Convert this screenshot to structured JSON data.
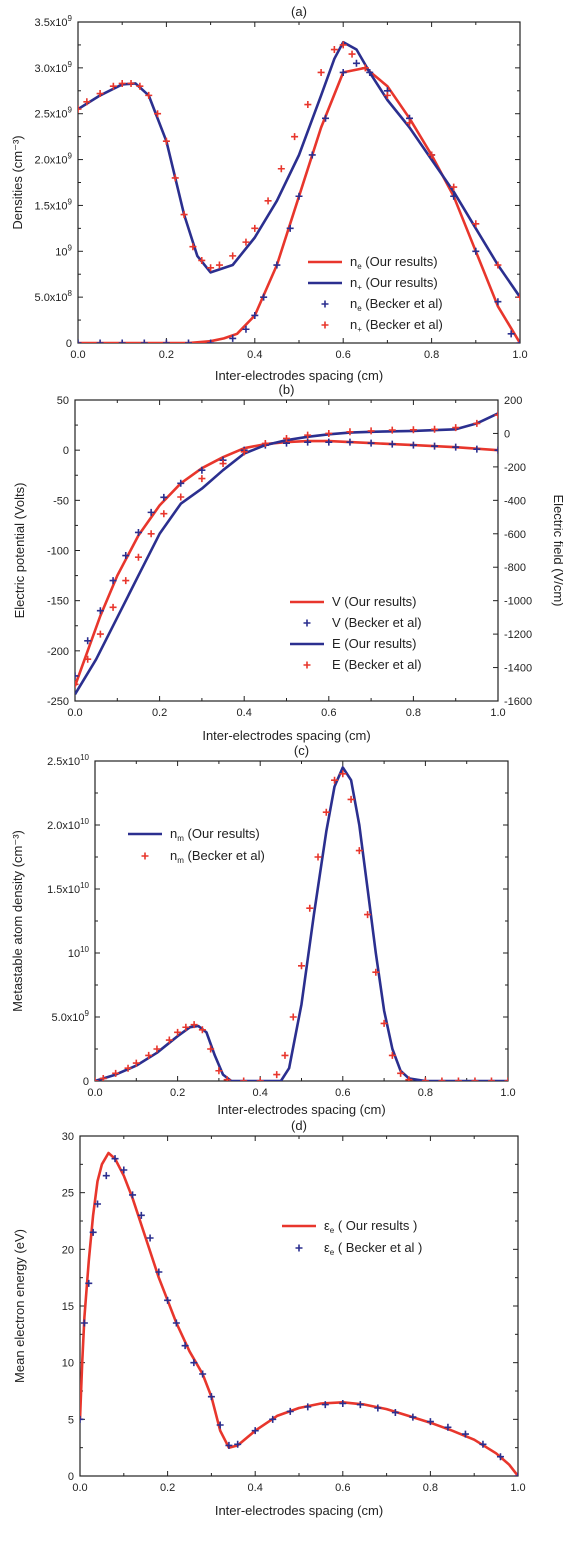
{
  "colors": {
    "red": "#e8362c",
    "blue": "#2b2f8f",
    "axis": "#222222"
  },
  "chart_data": [
    {
      "panel": "(a)",
      "type": "line",
      "title": "(a)",
      "xlabel": "Inter-electrodes spacing (cm)",
      "ylabel": "Densities (cm⁻³)",
      "xlim": [
        0,
        1
      ],
      "ylim": [
        0,
        3500000000.0
      ],
      "xticks": [
        "0.0",
        "0.2",
        "0.4",
        "0.6",
        "0.8",
        "1.0"
      ],
      "yticks": [
        {
          "v": 0,
          "base": "0",
          "exp": ""
        },
        {
          "v": 500000000.0,
          "base": "5.0x10",
          "exp": "8"
        },
        {
          "v": 1000000000.0,
          "base": "10",
          "exp": "9"
        },
        {
          "v": 1500000000.0,
          "base": "1.5x10",
          "exp": "9"
        },
        {
          "v": 2000000000.0,
          "base": "2.0x10",
          "exp": "9"
        },
        {
          "v": 2500000000.0,
          "base": "2.5x10",
          "exp": "9"
        },
        {
          "v": 3000000000.0,
          "base": "3.0x10",
          "exp": "9"
        },
        {
          "v": 3500000000.0,
          "base": "3.5x10",
          "exp": "9"
        }
      ],
      "legend_position": "center-right",
      "series": [
        {
          "name": "n_e (Our results)",
          "sym": "n",
          "subscript": "e",
          "rest": " (Our results)",
          "style": "line",
          "color": "red",
          "x": [
            0,
            0.05,
            0.1,
            0.15,
            0.2,
            0.25,
            0.3,
            0.33,
            0.36,
            0.4,
            0.45,
            0.5,
            0.55,
            0.6,
            0.65,
            0.7,
            0.75,
            0.8,
            0.85,
            0.9,
            0.95,
            1.0
          ],
          "y": [
            0.0,
            0.0,
            0.0,
            0.0,
            0.0,
            0.0,
            20000000.0,
            50000000.0,
            100000000.0,
            300000000.0,
            850000000.0,
            1600000000.0,
            2350000000.0,
            2950000000.0,
            3000000000.0,
            2800000000.0,
            2450000000.0,
            2050000000.0,
            1600000000.0,
            1000000000.0,
            400000000.0,
            0.0
          ]
        },
        {
          "name": "n_+ (Our results)",
          "sym": "n",
          "subscript": "+",
          "rest": " (Our results)",
          "style": "line",
          "color": "blue",
          "x": [
            0,
            0.05,
            0.1,
            0.13,
            0.16,
            0.2,
            0.24,
            0.27,
            0.3,
            0.35,
            0.4,
            0.45,
            0.5,
            0.55,
            0.58,
            0.6,
            0.63,
            0.66,
            0.7,
            0.75,
            0.8,
            0.85,
            0.9,
            0.95,
            1.0
          ],
          "y": [
            2550000000.0,
            2700000000.0,
            2820000000.0,
            2830000000.0,
            2700000000.0,
            2200000000.0,
            1400000000.0,
            950000000.0,
            770000000.0,
            850000000.0,
            1150000000.0,
            1550000000.0,
            2050000000.0,
            2700000000.0,
            3100000000.0,
            3280000000.0,
            3200000000.0,
            2950000000.0,
            2650000000.0,
            2350000000.0,
            2000000000.0,
            1650000000.0,
            1250000000.0,
            850000000.0,
            500000000.0
          ]
        },
        {
          "name": "n_e (Becker et al)",
          "sym": "n",
          "subscript": "e",
          "rest": " (Becker et al)",
          "style": "plus",
          "color": "blue",
          "x": [
            0.0,
            0.05,
            0.1,
            0.15,
            0.2,
            0.25,
            0.3,
            0.35,
            0.38,
            0.4,
            0.42,
            0.45,
            0.48,
            0.5,
            0.53,
            0.56,
            0.6,
            0.63,
            0.66,
            0.7,
            0.75,
            0.8,
            0.85,
            0.9,
            0.95,
            0.98,
            1.0
          ],
          "y": [
            0.0,
            0.0,
            0.0,
            0.0,
            0.0,
            0.0,
            0.0,
            50000000.0,
            150000000.0,
            300000000.0,
            500000000.0,
            850000000.0,
            1250000000.0,
            1600000000.0,
            2050000000.0,
            2450000000.0,
            2950000000.0,
            3050000000.0,
            2950000000.0,
            2750000000.0,
            2450000000.0,
            2050000000.0,
            1600000000.0,
            1000000000.0,
            450000000.0,
            100000000.0,
            0.0
          ]
        },
        {
          "name": "n_+ (Becker et al)",
          "sym": "n",
          "subscript": "+",
          "rest": " (Becker et al)",
          "style": "plus",
          "color": "red",
          "x": [
            0.0,
            0.02,
            0.05,
            0.08,
            0.1,
            0.12,
            0.14,
            0.16,
            0.18,
            0.2,
            0.22,
            0.24,
            0.26,
            0.28,
            0.3,
            0.32,
            0.35,
            0.38,
            0.4,
            0.43,
            0.46,
            0.49,
            0.52,
            0.55,
            0.58,
            0.6,
            0.62,
            0.65,
            0.7,
            0.75,
            0.8,
            0.85,
            0.9,
            0.95,
            1.0
          ],
          "y": [
            2550000000.0,
            2630000000.0,
            2720000000.0,
            2800000000.0,
            2830000000.0,
            2830000000.0,
            2800000000.0,
            2700000000.0,
            2500000000.0,
            2200000000.0,
            1800000000.0,
            1400000000.0,
            1050000000.0,
            900000000.0,
            820000000.0,
            850000000.0,
            950000000.0,
            1100000000.0,
            1250000000.0,
            1550000000.0,
            1900000000.0,
            2250000000.0,
            2600000000.0,
            2950000000.0,
            3200000000.0,
            3250000000.0,
            3150000000.0,
            3000000000.0,
            2700000000.0,
            2400000000.0,
            2050000000.0,
            1700000000.0,
            1300000000.0,
            850000000.0,
            500000000.0
          ]
        }
      ]
    },
    {
      "panel": "(b)",
      "type": "line",
      "title": "(b)",
      "xlabel": "Inter-electrodes spacing (cm)",
      "ylabel": "Electric potential (Volts)",
      "y2label": "Electric field (V/cm)",
      "xlim": [
        0,
        1
      ],
      "ylim": [
        -250,
        50
      ],
      "y2lim": [
        -1600,
        200
      ],
      "xticks": [
        "0.0",
        "0.2",
        "0.4",
        "0.6",
        "0.8",
        "1.0"
      ],
      "yticks": [
        "-250",
        "-200",
        "-150",
        "-100",
        "-50",
        "0",
        "50"
      ],
      "y2ticks": [
        "-1600",
        "-1400",
        "-1200",
        "-1000",
        "-800",
        "-600",
        "-400",
        "-200",
        "0",
        "200"
      ],
      "legend_position": "center-right",
      "series": [
        {
          "name": "V (Our results)",
          "sym": "V",
          "subscript": "",
          "rest": " (Our results)",
          "style": "line",
          "color": "red",
          "axis": "left",
          "x": [
            0,
            0.03,
            0.06,
            0.1,
            0.15,
            0.2,
            0.25,
            0.3,
            0.35,
            0.4,
            0.45,
            0.5,
            0.55,
            0.6,
            0.65,
            0.7,
            0.8,
            0.9,
            1.0
          ],
          "y": [
            -235,
            -200,
            -165,
            -125,
            -85,
            -55,
            -33,
            -18,
            -7,
            2,
            6,
            8,
            9,
            9,
            8,
            7,
            5,
            3,
            0
          ]
        },
        {
          "name": "V (Becker et al)",
          "sym": "V",
          "subscript": "",
          "rest": " (Becker et al)",
          "style": "plus",
          "color": "blue",
          "axis": "left",
          "x": [
            0,
            0.03,
            0.06,
            0.09,
            0.12,
            0.15,
            0.18,
            0.21,
            0.25,
            0.3,
            0.35,
            0.4,
            0.45,
            0.5,
            0.55,
            0.6,
            0.65,
            0.7,
            0.75,
            0.8,
            0.85,
            0.9,
            0.95,
            1.0
          ],
          "y": [
            -225,
            -190,
            -160,
            -130,
            -105,
            -82,
            -62,
            -47,
            -33,
            -20,
            -10,
            0,
            5,
            7,
            8,
            8,
            8,
            7,
            6,
            5,
            4,
            3,
            1,
            0
          ]
        },
        {
          "name": "E (Our results)",
          "sym": "E",
          "subscript": "",
          "rest": " (Our results)",
          "style": "line",
          "color": "blue",
          "axis": "right",
          "x": [
            0,
            0.05,
            0.1,
            0.15,
            0.2,
            0.25,
            0.3,
            0.35,
            0.4,
            0.45,
            0.5,
            0.55,
            0.6,
            0.65,
            0.7,
            0.8,
            0.9,
            0.95,
            1.0
          ],
          "y": [
            -1560,
            -1350,
            -1100,
            -850,
            -600,
            -420,
            -330,
            -220,
            -120,
            -70,
            -40,
            -20,
            -5,
            5,
            10,
            15,
            25,
            60,
            120
          ]
        },
        {
          "name": "E (Becker et al)",
          "sym": "E",
          "subscript": "",
          "rest": " (Becker et al)",
          "style": "plus",
          "color": "red",
          "axis": "right",
          "x": [
            0,
            0.03,
            0.06,
            0.09,
            0.12,
            0.15,
            0.18,
            0.21,
            0.25,
            0.3,
            0.35,
            0.4,
            0.45,
            0.5,
            0.55,
            0.6,
            0.65,
            0.7,
            0.75,
            0.8,
            0.85,
            0.9,
            0.95,
            1.0
          ],
          "y": [
            -1500,
            -1350,
            -1200,
            -1040,
            -880,
            -740,
            -600,
            -480,
            -380,
            -270,
            -180,
            -110,
            -60,
            -30,
            -10,
            0,
            10,
            15,
            20,
            22,
            25,
            35,
            60,
            110
          ]
        }
      ]
    },
    {
      "panel": "(c)",
      "type": "line",
      "title": "(c)",
      "xlabel": "Inter-electrodes spacing (cm)",
      "ylabel": "Metastable atom density (cm⁻³)",
      "xlim": [
        0,
        1
      ],
      "ylim": [
        0,
        25000000000.0
      ],
      "xticks": [
        "0.0",
        "0.2",
        "0.4",
        "0.6",
        "0.8",
        "1.0"
      ],
      "yticks": [
        {
          "v": 0,
          "base": "0",
          "exp": ""
        },
        {
          "v": 5000000000.0,
          "base": "5.0x10",
          "exp": "9"
        },
        {
          "v": 10000000000.0,
          "base": "10",
          "exp": "10"
        },
        {
          "v": 15000000000.0,
          "base": "1.5x10",
          "exp": "10"
        },
        {
          "v": 20000000000.0,
          "base": "2.0x10",
          "exp": "10"
        },
        {
          "v": 25000000000.0,
          "base": "2.5x10",
          "exp": "10"
        }
      ],
      "legend_position": "top-left",
      "series": [
        {
          "name": "n_m (Our results)",
          "sym": "n",
          "subscript": "m",
          "rest": " (Our results)",
          "style": "line",
          "color": "blue",
          "x": [
            0,
            0.05,
            0.1,
            0.15,
            0.2,
            0.23,
            0.25,
            0.27,
            0.29,
            0.31,
            0.33,
            0.35,
            0.45,
            0.47,
            0.5,
            0.53,
            0.56,
            0.58,
            0.6,
            0.62,
            0.64,
            0.66,
            0.68,
            0.7,
            0.72,
            0.74,
            0.76,
            0.8,
            1.0
          ],
          "y": [
            0,
            500000000.0,
            1200000000.0,
            2200000000.0,
            3500000000.0,
            4200000000.0,
            4300000000.0,
            3800000000.0,
            2000000000.0,
            500000000.0,
            0,
            0,
            0,
            1000000000.0,
            6000000000.0,
            13000000000.0,
            19500000000.0,
            23000000000.0,
            24500000000.0,
            23500000000.0,
            20000000000.0,
            15000000000.0,
            10000000000.0,
            5500000000.0,
            2500000000.0,
            800000000.0,
            200000000.0,
            0,
            0
          ]
        },
        {
          "name": "n_m (Becker et al)",
          "sym": "n",
          "subscript": "m",
          "rest": " (Becker et al)",
          "style": "plus",
          "color": "red",
          "x": [
            0.0,
            0.02,
            0.05,
            0.08,
            0.1,
            0.13,
            0.15,
            0.18,
            0.2,
            0.22,
            0.24,
            0.26,
            0.28,
            0.3,
            0.32,
            0.36,
            0.4,
            0.44,
            0.46,
            0.48,
            0.5,
            0.52,
            0.54,
            0.56,
            0.58,
            0.6,
            0.62,
            0.64,
            0.66,
            0.68,
            0.7,
            0.72,
            0.74,
            0.76,
            0.8,
            0.84,
            0.88,
            0.92,
            0.96,
            1.0
          ],
          "y": [
            0,
            200000000.0,
            600000000.0,
            1000000000.0,
            1400000000.0,
            2000000000.0,
            2500000000.0,
            3200000000.0,
            3800000000.0,
            4200000000.0,
            4400000000.0,
            4000000000.0,
            2500000000.0,
            800000000.0,
            100000000.0,
            0,
            0,
            500000000.0,
            2000000000.0,
            5000000000.0,
            9000000000.0,
            13500000000.0,
            17500000000.0,
            21000000000.0,
            23500000000.0,
            24000000000.0,
            22000000000.0,
            18000000000.0,
            13000000000.0,
            8500000000.0,
            4500000000.0,
            2000000000.0,
            600000000.0,
            100000000.0,
            0,
            0,
            0,
            0,
            0,
            0
          ]
        }
      ]
    },
    {
      "panel": "(d)",
      "type": "line",
      "title": "(d)",
      "xlabel": "Inter-electrodes spacing (cm)",
      "ylabel": "Mean electron energy (eV)",
      "xlim": [
        0,
        1
      ],
      "ylim": [
        0,
        30
      ],
      "xticks": [
        "0.0",
        "0.2",
        "0.4",
        "0.6",
        "0.8",
        "1.0"
      ],
      "yticks": [
        "0",
        "5",
        "10",
        "15",
        "20",
        "25",
        "30"
      ],
      "legend_position": "center-right",
      "series": [
        {
          "name": "ε_e ( Our results )",
          "sym": "ε",
          "subscript": "e",
          "rest": " ( Our results )",
          "style": "line",
          "color": "red",
          "x": [
            0,
            0.005,
            0.01,
            0.02,
            0.03,
            0.04,
            0.05,
            0.065,
            0.08,
            0.1,
            0.12,
            0.15,
            0.18,
            0.2,
            0.22,
            0.25,
            0.28,
            0.3,
            0.32,
            0.34,
            0.36,
            0.4,
            0.45,
            0.5,
            0.55,
            0.6,
            0.65,
            0.7,
            0.75,
            0.8,
            0.85,
            0.9,
            0.95,
            0.98,
            1.0
          ],
          "y": [
            5,
            10,
            14,
            19,
            23,
            26,
            27.5,
            28.5,
            28,
            26.5,
            24.5,
            21,
            17.5,
            15.5,
            13.5,
            11,
            9,
            7,
            4,
            2.5,
            2.7,
            4,
            5.3,
            6.0,
            6.4,
            6.5,
            6.3,
            5.9,
            5.3,
            4.7,
            4.0,
            3.2,
            2.0,
            1.0,
            0
          ]
        },
        {
          "name": "ε_e ( Becker et al )",
          "sym": "ε",
          "subscript": "e",
          "rest": " ( Becker et al )",
          "style": "plus",
          "color": "blue",
          "x": [
            0.0,
            0.01,
            0.02,
            0.03,
            0.04,
            0.06,
            0.08,
            0.1,
            0.12,
            0.14,
            0.16,
            0.18,
            0.2,
            0.22,
            0.24,
            0.26,
            0.28,
            0.3,
            0.32,
            0.34,
            0.36,
            0.4,
            0.44,
            0.48,
            0.52,
            0.56,
            0.6,
            0.64,
            0.68,
            0.72,
            0.76,
            0.8,
            0.84,
            0.88,
            0.92,
            0.96,
            1.0
          ],
          "y": [
            5,
            13.5,
            17,
            21.5,
            24,
            26.5,
            28,
            27,
            24.8,
            23,
            21,
            18,
            15.5,
            13.5,
            11.5,
            10,
            9,
            7,
            4.5,
            2.7,
            2.8,
            4.0,
            5.0,
            5.7,
            6.1,
            6.3,
            6.4,
            6.3,
            6.0,
            5.6,
            5.2,
            4.8,
            4.3,
            3.7,
            2.8,
            1.7,
            0
          ]
        }
      ]
    }
  ]
}
